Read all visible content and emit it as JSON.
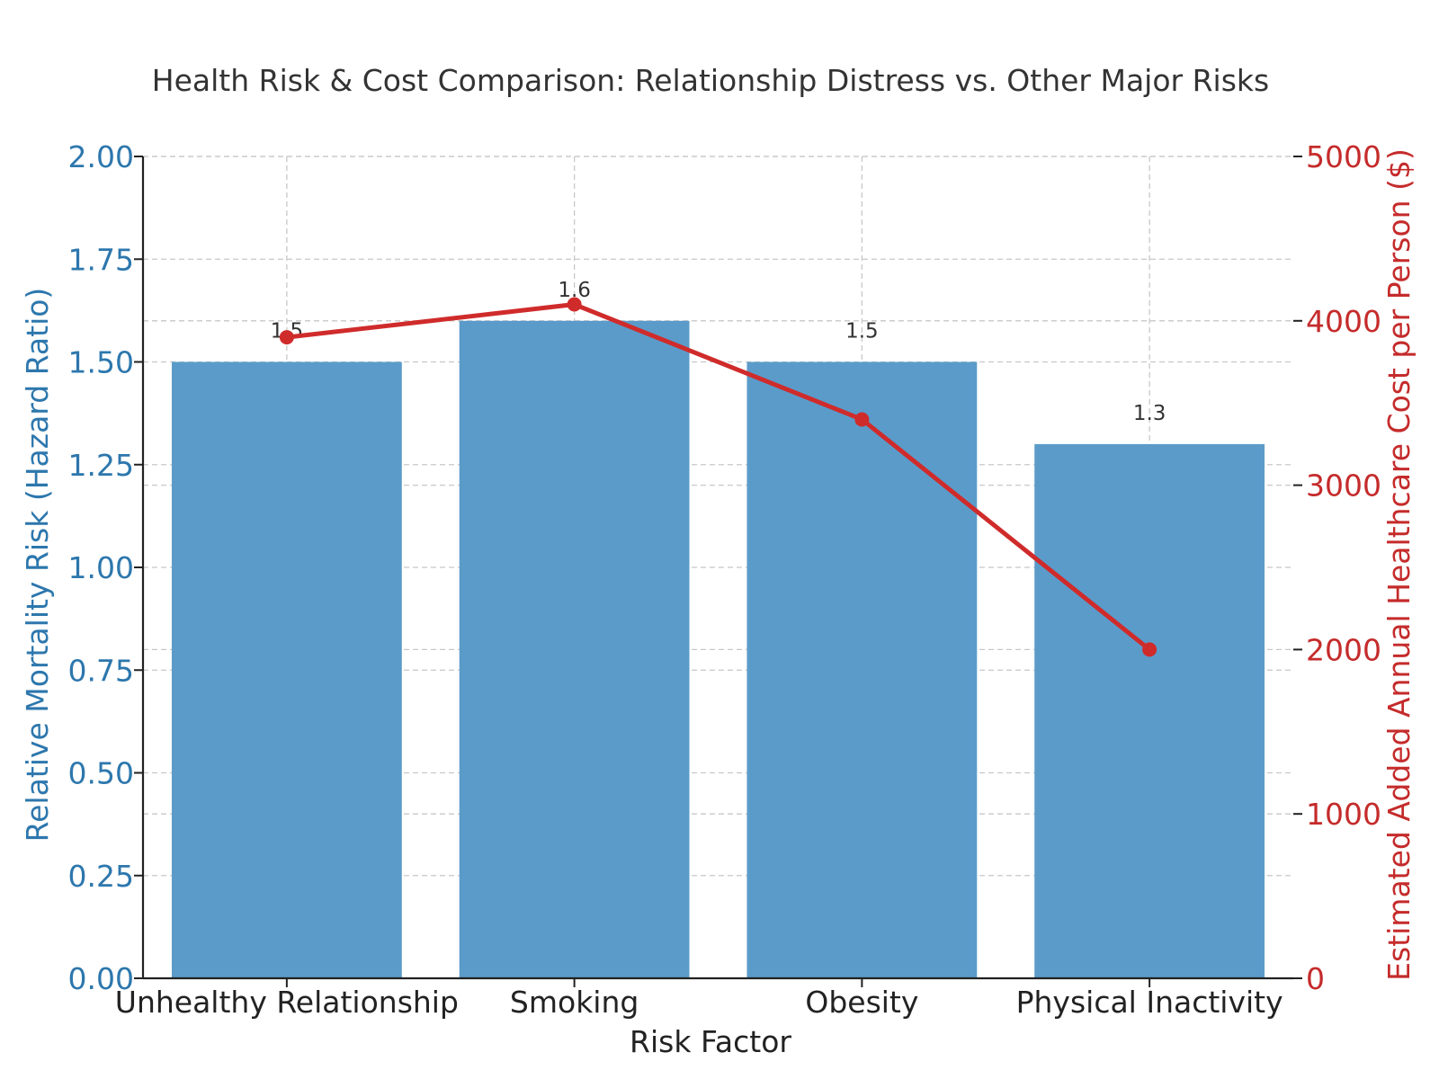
{
  "chart_data": {
    "type": "bar+line",
    "title": "Health Risk & Cost Comparison: Relationship Distress vs. Other Major Risks",
    "xlabel": "Risk Factor",
    "ylabel_left": "Relative Mortality Risk (Hazard Ratio)",
    "ylabel_right": "Estimated Added Annual Healthcare Cost per Person ($)",
    "categories": [
      "Unhealthy Relationship",
      "Smoking",
      "Obesity",
      "Physical Inactivity"
    ],
    "series": [
      {
        "name": "Relative Mortality Risk (Hazard Ratio)",
        "type": "bar",
        "axis": "left",
        "values": [
          1.5,
          1.6,
          1.5,
          1.3
        ],
        "labels": [
          "1.5",
          "1.6",
          "1.5",
          "1.3"
        ],
        "color": "#5b9bc9"
      },
      {
        "name": "Estimated Added Annual Healthcare Cost per Person ($)",
        "type": "line",
        "axis": "right",
        "values": [
          3900,
          4100,
          3400,
          2000
        ],
        "color": "#d02b2b"
      }
    ],
    "ylim_left": [
      0,
      2
    ],
    "yticks_left": [
      "0.00",
      "0.25",
      "0.50",
      "0.75",
      "1.00",
      "1.25",
      "1.50",
      "1.75",
      "2.00"
    ],
    "ylim_right": [
      0,
      5000
    ],
    "yticks_right": [
      "0",
      "1000",
      "2000",
      "3000",
      "4000",
      "5000"
    ],
    "left_axis_color": "#2d77ad",
    "right_axis_color": "#c52b2b",
    "grid": true
  }
}
